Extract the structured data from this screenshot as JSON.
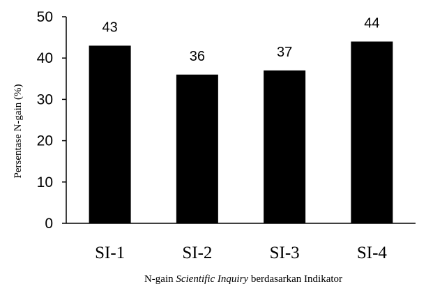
{
  "chart_data": {
    "type": "bar",
    "categories": [
      "SI-1",
      "SI-2",
      "SI-3",
      "SI-4"
    ],
    "values": [
      43,
      36,
      37,
      44
    ],
    "data_labels": [
      "43",
      "36",
      "37",
      "44"
    ],
    "ylabel": "Persentase N-gain (%)",
    "xlabel_parts": [
      {
        "text": "N-gain ",
        "italic": false
      },
      {
        "text": "Scientific Inquiry",
        "italic": true
      },
      {
        "text": " berdasarkan Indikator",
        "italic": false
      }
    ],
    "ylim": [
      0,
      50
    ],
    "yticks": [
      0,
      10,
      20,
      30,
      40,
      50
    ],
    "grid": false,
    "bar_color": "#000000"
  }
}
